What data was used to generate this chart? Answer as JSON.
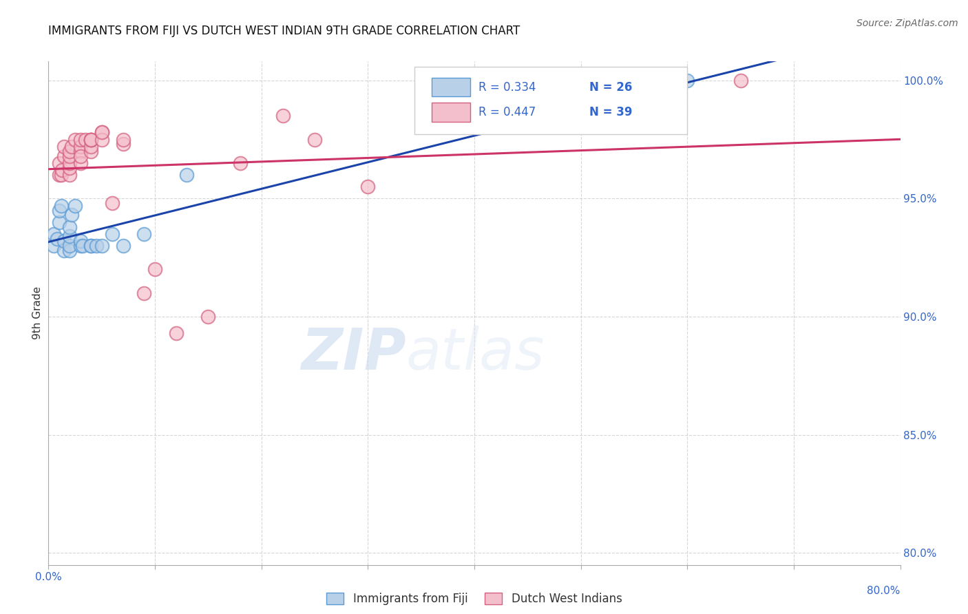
{
  "title": "IMMIGRANTS FROM FIJI VS DUTCH WEST INDIAN 9TH GRADE CORRELATION CHART",
  "source": "Source: ZipAtlas.com",
  "ylabel": "9th Grade",
  "xmin": 0.0,
  "xmax": 0.08,
  "ymin": 0.795,
  "ymax": 1.008,
  "yticks": [
    0.8,
    0.85,
    0.9,
    0.95,
    1.0
  ],
  "ytick_labels": [
    "80.0%",
    "85.0%",
    "90.0%",
    "95.0%",
    "100.0%"
  ],
  "fiji_color": "#b8d0e8",
  "fiji_edge": "#5b9bd5",
  "dwi_color": "#f4bfcc",
  "dwi_edge": "#d46080",
  "trend_fiji_color": "#1a44aa",
  "trend_dwi_color": "#cc3366",
  "legend_r_fiji": "R = 0.334",
  "legend_n_fiji": "N = 26",
  "legend_r_dwi": "R = 0.447",
  "legend_n_dwi": "N = 39",
  "watermark_zip": "ZIP",
  "watermark_atlas": "atlas",
  "fiji_x": [
    0.0005,
    0.0005,
    0.0008,
    0.001,
    0.001,
    0.0012,
    0.0015,
    0.0015,
    0.002,
    0.002,
    0.002,
    0.002,
    0.0022,
    0.0025,
    0.003,
    0.003,
    0.0032,
    0.004,
    0.004,
    0.0045,
    0.005,
    0.006,
    0.007,
    0.009,
    0.013,
    0.06
  ],
  "fiji_y": [
    0.93,
    0.935,
    0.933,
    0.94,
    0.945,
    0.947,
    0.928,
    0.932,
    0.928,
    0.93,
    0.934,
    0.938,
    0.943,
    0.947,
    0.93,
    0.932,
    0.93,
    0.93,
    0.93,
    0.93,
    0.93,
    0.935,
    0.93,
    0.935,
    0.96,
    1.0
  ],
  "dwi_x": [
    0.001,
    0.001,
    0.0012,
    0.0013,
    0.0015,
    0.0015,
    0.002,
    0.002,
    0.002,
    0.002,
    0.002,
    0.0022,
    0.0025,
    0.003,
    0.003,
    0.003,
    0.003,
    0.003,
    0.0035,
    0.004,
    0.004,
    0.004,
    0.004,
    0.004,
    0.005,
    0.005,
    0.005,
    0.006,
    0.007,
    0.007,
    0.009,
    0.01,
    0.012,
    0.015,
    0.018,
    0.022,
    0.025,
    0.03,
    0.065
  ],
  "dwi_y": [
    0.96,
    0.965,
    0.96,
    0.962,
    0.968,
    0.972,
    0.96,
    0.963,
    0.965,
    0.968,
    0.97,
    0.972,
    0.975,
    0.97,
    0.972,
    0.965,
    0.968,
    0.975,
    0.975,
    0.97,
    0.972,
    0.975,
    0.975,
    0.975,
    0.978,
    0.975,
    0.978,
    0.948,
    0.973,
    0.975,
    0.91,
    0.92,
    0.893,
    0.9,
    0.965,
    0.985,
    0.975,
    0.955,
    1.0
  ]
}
